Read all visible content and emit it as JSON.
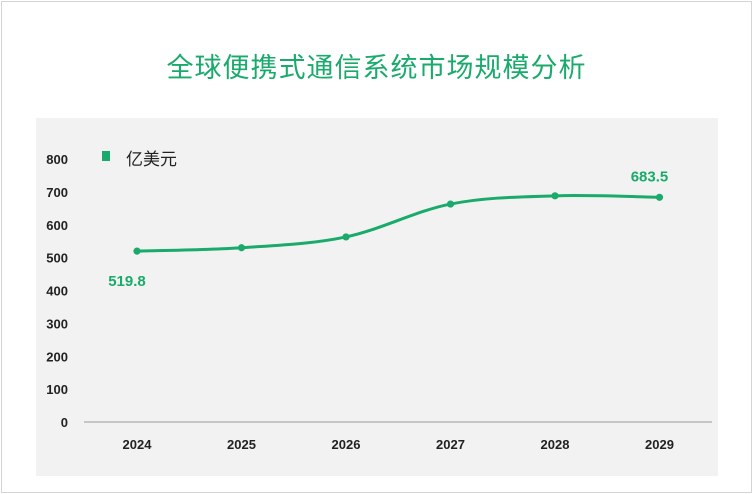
{
  "title": "全球便携式通信系统市场规模分析",
  "colors": {
    "accent": "#1aaa6b",
    "plot_bg": "#f2f2f2",
    "axis": "#999999"
  },
  "chart_data": {
    "type": "line",
    "title": "全球便携式通信系统市场规模分析",
    "categories": [
      "2024",
      "2025",
      "2026",
      "2027",
      "2028",
      "2029"
    ],
    "series": [
      {
        "name": "亿美元",
        "values": [
          519.8,
          530,
          563,
          663,
          688,
          683.5
        ]
      }
    ],
    "data_labels": [
      {
        "index": 0,
        "text": "519.8",
        "position": "below"
      },
      {
        "index": 5,
        "text": "683.5",
        "position": "above"
      }
    ],
    "ylim": [
      0,
      800
    ],
    "yticks": [
      "0",
      "100",
      "200",
      "300",
      "400",
      "500",
      "600",
      "700",
      "800"
    ],
    "xlabel": "",
    "ylabel": "",
    "legend_position": "top-left",
    "grid": false,
    "smooth": true
  }
}
